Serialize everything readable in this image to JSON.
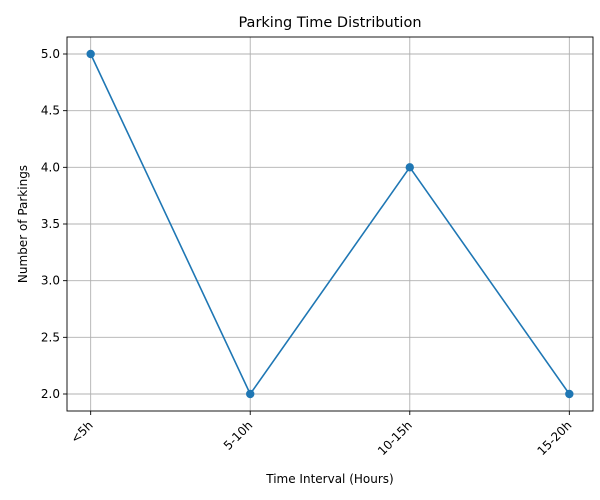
{
  "chart_data": {
    "type": "line",
    "title": "Parking Time Distribution",
    "xlabel": "Time Interval (Hours)",
    "ylabel": "Number of Parkings",
    "categories": [
      "<5h",
      "5-10h",
      "10-15h",
      "15-20h"
    ],
    "series": [
      {
        "values": [
          5,
          2,
          4,
          2
        ]
      }
    ],
    "ylim": [
      1.85,
      5.15
    ],
    "yticks": [
      "2.0",
      "2.5",
      "3.0",
      "3.5",
      "4.0",
      "4.5",
      "5.0"
    ],
    "grid": true,
    "marker": "circle",
    "x_tick_rotation": "45 degrees",
    "line_color": "#1f77b4",
    "grid_color": "#b0b0b0"
  }
}
